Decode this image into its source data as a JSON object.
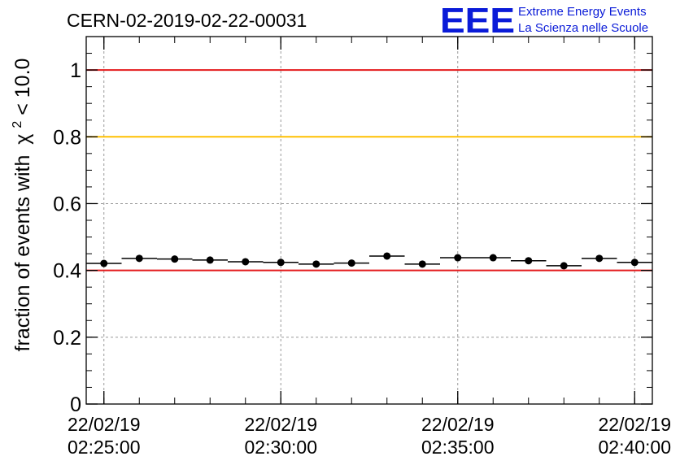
{
  "chart_data": {
    "type": "scatter",
    "title": "CERN-02-2019-02-22-00031",
    "ylabel_prefix": "fraction of events with",
    "ylabel_chi": "χ",
    "ylabel_sup": "2",
    "ylabel_suffix": " < 10.0",
    "xlabel": "",
    "x_tick_labels": [
      {
        "x_min": 0,
        "date": "22/02/19",
        "time": "02:25:00"
      },
      {
        "x_min": 5,
        "date": "22/02/19",
        "time": "02:30:00"
      },
      {
        "x_min": 10,
        "date": "22/02/19",
        "time": "02:35:00"
      },
      {
        "x_min": 15,
        "date": "22/02/19",
        "time": "02:40:00"
      }
    ],
    "y_ticks": [
      0,
      0.2,
      0.4,
      0.6,
      0.8,
      1
    ],
    "y_tick_labels": [
      "0",
      "0.2",
      "0.4",
      "0.6",
      "0.8",
      "1"
    ],
    "xlim_min": [
      -0.5,
      15.5
    ],
    "ylim": [
      0,
      1.1
    ],
    "grid": true,
    "bin_halfwidth_min": 0.5,
    "points": [
      {
        "x": 0,
        "y": 0.421
      },
      {
        "x": 1,
        "y": 0.436
      },
      {
        "x": 2,
        "y": 0.434
      },
      {
        "x": 3,
        "y": 0.431
      },
      {
        "x": 4,
        "y": 0.426
      },
      {
        "x": 5,
        "y": 0.424
      },
      {
        "x": 6,
        "y": 0.419
      },
      {
        "x": 7,
        "y": 0.422
      },
      {
        "x": 8,
        "y": 0.443
      },
      {
        "x": 9,
        "y": 0.419
      },
      {
        "x": 10,
        "y": 0.438
      },
      {
        "x": 11,
        "y": 0.438
      },
      {
        "x": 12,
        "y": 0.429
      },
      {
        "x": 13,
        "y": 0.414
      },
      {
        "x": 14,
        "y": 0.436
      },
      {
        "x": 15,
        "y": 0.424
      }
    ],
    "reference_lines": [
      {
        "y": 1.0,
        "color": "#e41a1c"
      },
      {
        "y": 0.8,
        "color": "#ffc000"
      },
      {
        "y": 0.4,
        "color": "#e41a1c"
      }
    ]
  },
  "logo": {
    "letters": "EEE",
    "line1": "Extreme Energy Events",
    "line2": "La Scienza nelle Scuole",
    "color": "#0a1bd8"
  }
}
